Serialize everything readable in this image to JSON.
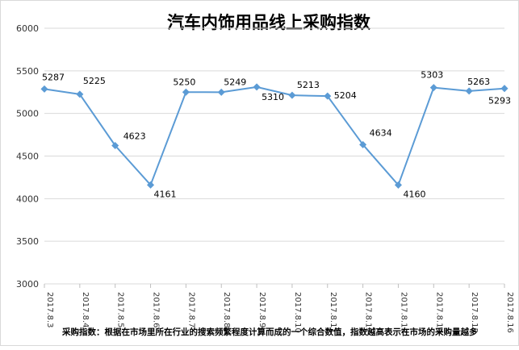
{
  "chart_data": {
    "type": "line",
    "title": "汽车内饰用品线上采购指数",
    "xlabel": "",
    "ylabel": "",
    "ylim": [
      3000,
      6000
    ],
    "yticks": [
      3000,
      3500,
      4000,
      4500,
      5000,
      5500,
      6000
    ],
    "grid": true,
    "legend": "none",
    "line_color": "#5b9bd5",
    "categories": [
      "2017.8.3",
      "2017.8.4",
      "2017.8.5",
      "2017.8.6",
      "2017.8.7",
      "2017.8.8",
      "2017.8.9",
      "2017.8.10",
      "2017.8.11",
      "2017.8.12",
      "2017.8.13",
      "2017.8.14",
      "2017.8.15",
      "2017.8.16"
    ],
    "values": [
      5287,
      5225,
      4623,
      4161,
      5250,
      5249,
      5310,
      5213,
      5204,
      4634,
      4160,
      5303,
      5263,
      5293
    ],
    "footnote": "采购指数：根据在市场里所在行业的搜索频繁程度计算而成的一个综合数值，指数越高表示在市场的采购量越多"
  }
}
